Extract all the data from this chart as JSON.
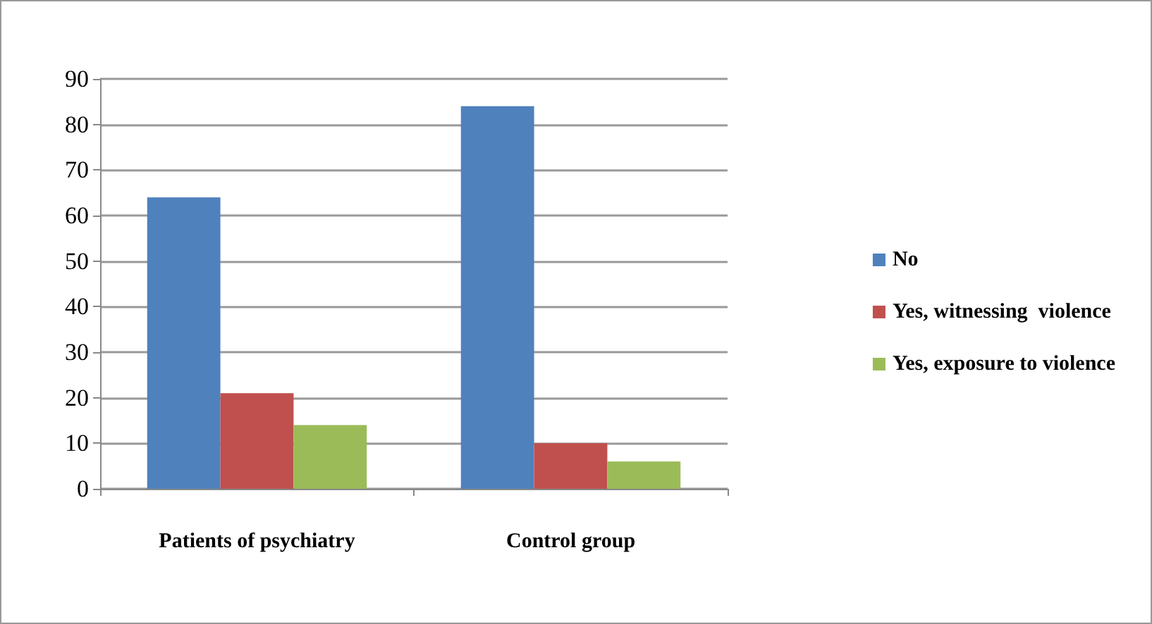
{
  "chart_data": {
    "type": "bar",
    "categories": [
      "Patients of psychiatry",
      "Control group"
    ],
    "series": [
      {
        "name": "No",
        "color": "#4f81bd",
        "values": [
          64,
          84
        ]
      },
      {
        "name": "Yes, witnessing  violence",
        "color": "#c0504d",
        "values": [
          21,
          10
        ]
      },
      {
        "name": "Yes, exposure to violence",
        "color": "#9bbb59",
        "values": [
          14,
          6
        ]
      }
    ],
    "ylim": [
      0,
      90
    ],
    "yticks": [
      0,
      10,
      20,
      30,
      40,
      50,
      60,
      70,
      80,
      90
    ],
    "grid": "y",
    "legend": "right"
  }
}
